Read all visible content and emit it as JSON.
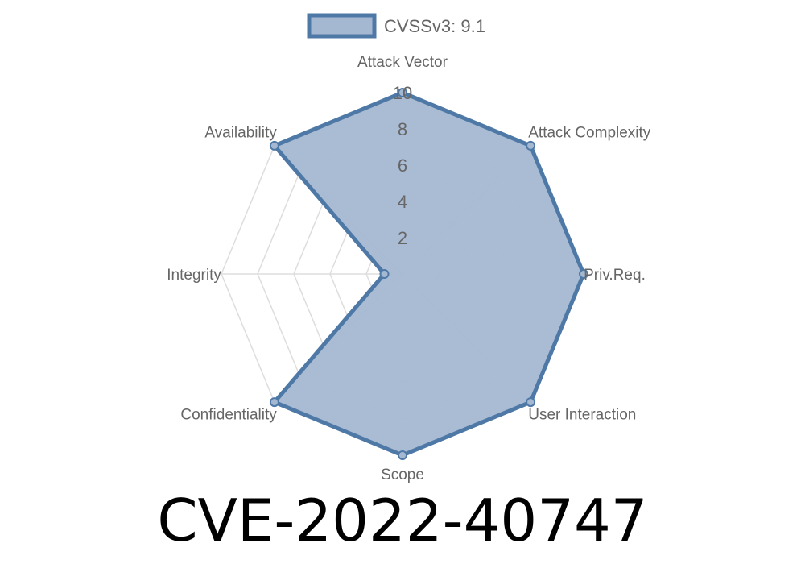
{
  "chart_data": {
    "type": "radar",
    "title": "CVE-2022-40747",
    "categories": [
      "Attack Vector",
      "Attack Complexity",
      "Priv.Req.",
      "User Interaction",
      "Scope",
      "Confidentiality",
      "Integrity",
      "Availability"
    ],
    "series": [
      {
        "name": "CVSSv3: 9.1",
        "values": [
          10,
          10,
          10,
          10,
          10,
          10,
          1,
          10
        ]
      }
    ],
    "rlim": [
      0,
      10
    ],
    "ticks": [
      2,
      4,
      6,
      8,
      10
    ],
    "legend": "top",
    "grid": true,
    "colors": {
      "fill": "#a5b8d2",
      "stroke": "#4e79a7",
      "grid": "#dddddd"
    }
  }
}
